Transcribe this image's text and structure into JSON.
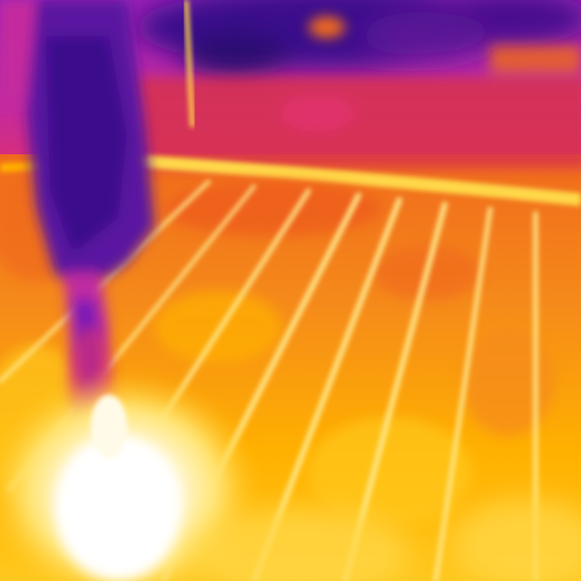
{
  "image": {
    "kind": "thermal-photograph",
    "palette": "ironbow",
    "subject": "thermal-floor-scene",
    "colors": {
      "cold_deep": "#3a0c8c",
      "cold": "#7a1fb6",
      "cool": "#c02aa0",
      "mid": "#e0306a",
      "warm": "#f06a1c",
      "hot": "#ffb100",
      "hotter": "#ffd84a",
      "hottest": "#fffbe8"
    }
  }
}
